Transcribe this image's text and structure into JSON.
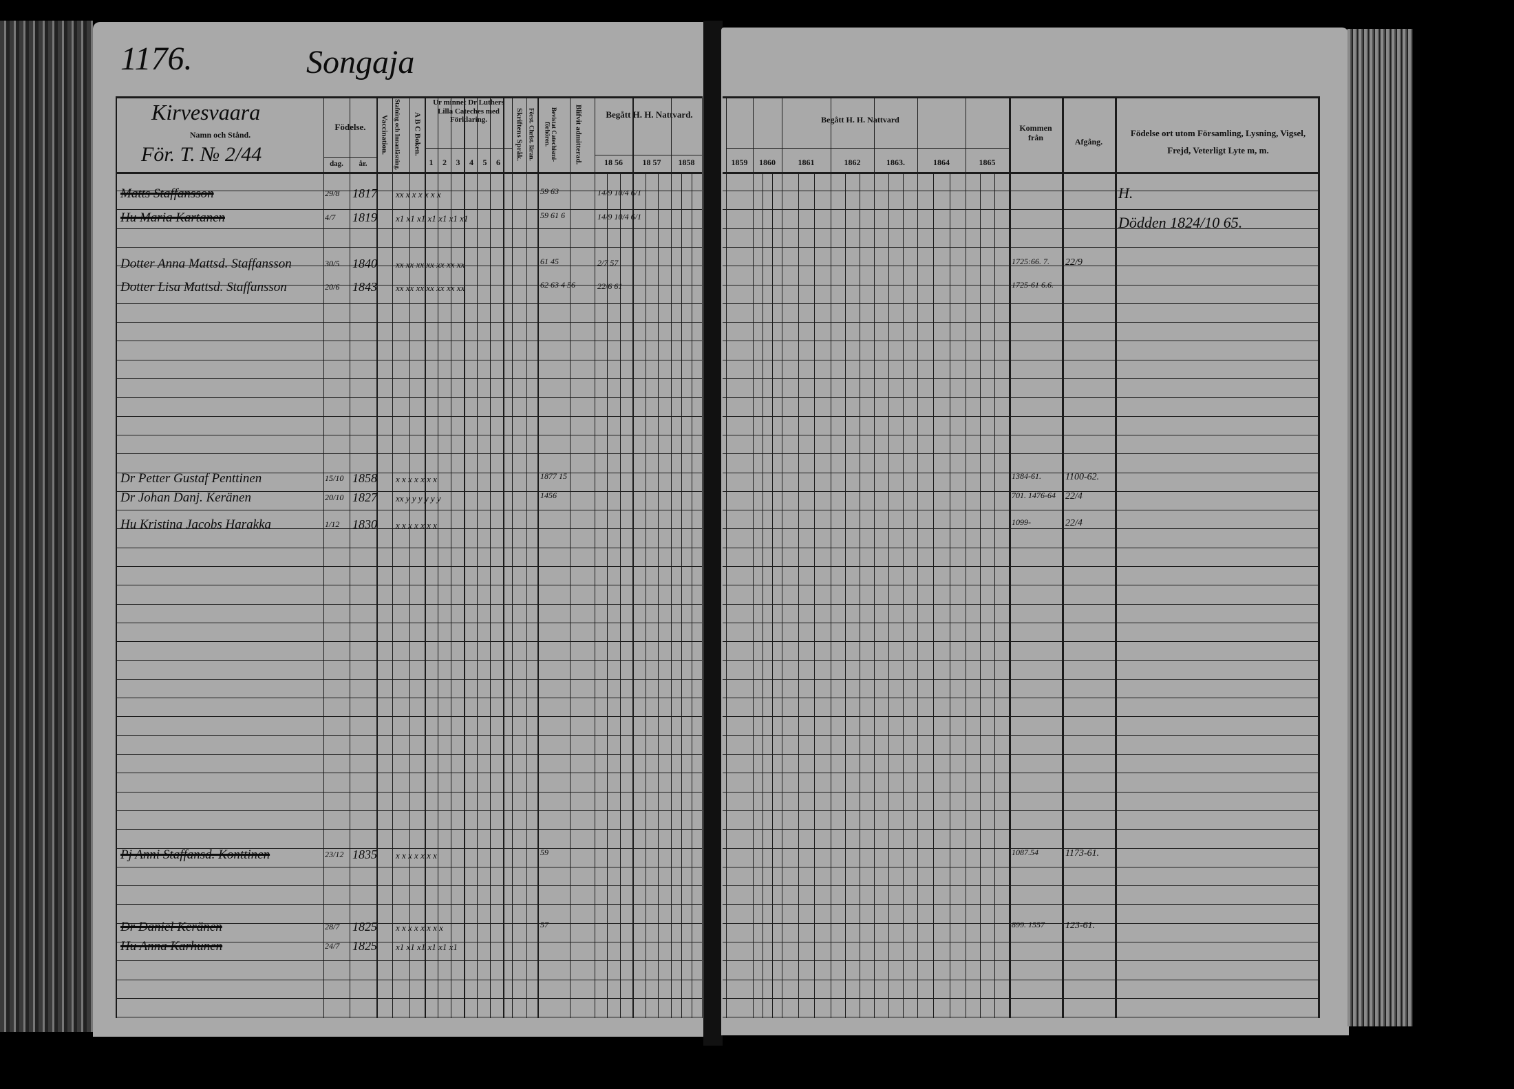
{
  "left_page": {
    "page_number": "1176.",
    "village": "Songaja",
    "place": "Kirvesvaara",
    "name_header": "Namn och Stånd.",
    "household_ref": "För. T. № 2/44",
    "columns": {
      "birth": "Födelse.",
      "day": "dag.",
      "year": "år.",
      "vaccination": "Vaccination.",
      "spelling": "Stafning och Innanläsning.",
      "abc": "A B C Boken.",
      "catechism": "Ur minnet Dr Luthers Lilla Cateches med Förklaring.",
      "catechism_parts": [
        "1",
        "2",
        "3",
        "4",
        "5",
        "6"
      ],
      "scripture": "Skriftens Språk.",
      "christ": "Först. Christ. läran.",
      "examinations": "Bevistat Catechismi-förhören.",
      "admitted": "Blifvit admitterad.",
      "communion": "Begått H. H. Nattvard.",
      "years": [
        "18 56",
        "18 57",
        "1858"
      ]
    }
  },
  "right_page": {
    "columns": {
      "communion": "Begått H. H. Nattvard",
      "years": [
        "1859",
        "1860",
        "1861",
        "1862",
        "1863.",
        "1864",
        "1865"
      ],
      "came_from": "Kommen från",
      "departure": "Afgång.",
      "remarks": "Födelse ort utom Församling, Lysning, Vigsel, Frejd, Veterligt Lyte m, m."
    }
  },
  "entries": [
    {
      "name": "Matts Staffansson",
      "day": "29/8",
      "year": "1817",
      "marks": "xx x x x x x x",
      "exam": "59 63",
      "communion": "14/9  10/4  6/1",
      "came_from": "",
      "departure": "",
      "remark": "H."
    },
    {
      "name": "Hu Maria Kartanen",
      "day": "4/7",
      "year": "1819",
      "marks": "x1 x1 x1 x1 x1 x1 x1",
      "exam": "59 61 6",
      "communion": "14/9  10/4  6/1",
      "came_from": "",
      "departure": "",
      "remark": "Dödden 1824/10 65."
    },
    {
      "name": "Dotter Anna Mattsd. Staffansson",
      "day": "30/5",
      "year": "1840",
      "marks": "xx xx xx xx xx xx xx",
      "exam": "61 45",
      "communion": "2/7 57",
      "came_from": "1725:66. 7.",
      "departure": "22/9",
      "remark": ""
    },
    {
      "name": "Dotter Lisa Mattsd. Staffansson",
      "day": "20/6",
      "year": "1843",
      "marks": "xx xx xx xx xx xx xx",
      "exam": "62 63 4 56",
      "communion": "22/6 61",
      "came_from": "1725-61 6.6.",
      "departure": "",
      "remark": ""
    },
    {
      "name": "Dr Petter Gustaf Penttinen",
      "day": "15/10",
      "year": "1858",
      "marks": "x x x x x x x",
      "exam": "1877 15",
      "communion": "",
      "came_from": "1384-61.",
      "departure": "1100-62.",
      "remark": ""
    },
    {
      "name": "Dr Johan Danj. Keränen",
      "day": "20/10",
      "year": "1827",
      "marks": "xx y y y y y y",
      "exam": "1456",
      "communion": "",
      "came_from": "701. 1476-64",
      "departure": "22/4",
      "remark": ""
    },
    {
      "name": "Hu Kristina Jacobs Harakka",
      "day": "1/12",
      "year": "1830",
      "marks": "x x x x x x x",
      "exam": "",
      "communion": "",
      "came_from": "1099-",
      "departure": "22/4",
      "remark": ""
    },
    {
      "name": "Pj Anni Staffansd. Konttinen",
      "day": "23/12",
      "year": "1835",
      "marks": "x x x x x x x",
      "exam": "59",
      "communion": "",
      "came_from": "1087.54",
      "departure": "1173-61.",
      "remark": ""
    },
    {
      "name": "Dr Daniel Keränen",
      "day": "28/7",
      "year": "1825",
      "marks": "x x x x x x x x",
      "exam": "57",
      "communion": "",
      "came_from": "899. 1557",
      "departure": "123-61.",
      "remark": ""
    },
    {
      "name": "Hu Anna Karhunen",
      "day": "24/7",
      "year": "1825",
      "marks": "x1 x1 x1 x1 x1 x1",
      "exam": "",
      "communion": "",
      "came_from": "",
      "departure": "",
      "remark": ""
    }
  ]
}
